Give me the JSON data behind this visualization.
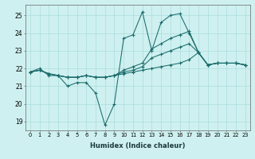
{
  "xlabel": "Humidex (Indice chaleur)",
  "bg_color": "#cff0f0",
  "grid_color": "#aadddd",
  "line_color": "#1a6b6b",
  "xlim": [
    -0.5,
    23.5
  ],
  "ylim": [
    18.5,
    25.6
  ],
  "yticks": [
    19,
    20,
    21,
    22,
    23,
    24,
    25
  ],
  "xticks": [
    0,
    1,
    2,
    3,
    4,
    5,
    6,
    7,
    8,
    9,
    10,
    11,
    12,
    13,
    14,
    15,
    16,
    17,
    18,
    19,
    20,
    21,
    22,
    23
  ],
  "series": [
    [
      21.8,
      22.0,
      21.6,
      21.6,
      21.0,
      21.2,
      21.2,
      20.6,
      18.8,
      20.0,
      23.7,
      23.9,
      25.2,
      23.0,
      24.6,
      25.0,
      25.1,
      24.0,
      22.9,
      22.2,
      22.3,
      22.3,
      22.3,
      22.2
    ],
    [
      21.8,
      21.9,
      21.7,
      21.6,
      21.5,
      21.5,
      21.6,
      21.5,
      21.5,
      21.6,
      21.9,
      22.1,
      22.3,
      23.1,
      23.4,
      23.7,
      23.9,
      24.1,
      22.9,
      22.2,
      22.3,
      22.3,
      22.3,
      22.2
    ],
    [
      21.8,
      21.9,
      21.7,
      21.6,
      21.5,
      21.5,
      21.6,
      21.5,
      21.5,
      21.6,
      21.8,
      21.9,
      22.1,
      22.6,
      22.8,
      23.0,
      23.2,
      23.4,
      22.9,
      22.2,
      22.3,
      22.3,
      22.3,
      22.2
    ],
    [
      21.8,
      21.9,
      21.7,
      21.6,
      21.5,
      21.5,
      21.6,
      21.5,
      21.5,
      21.6,
      21.7,
      21.8,
      21.9,
      22.0,
      22.1,
      22.2,
      22.3,
      22.5,
      22.9,
      22.2,
      22.3,
      22.3,
      22.3,
      22.2
    ]
  ]
}
